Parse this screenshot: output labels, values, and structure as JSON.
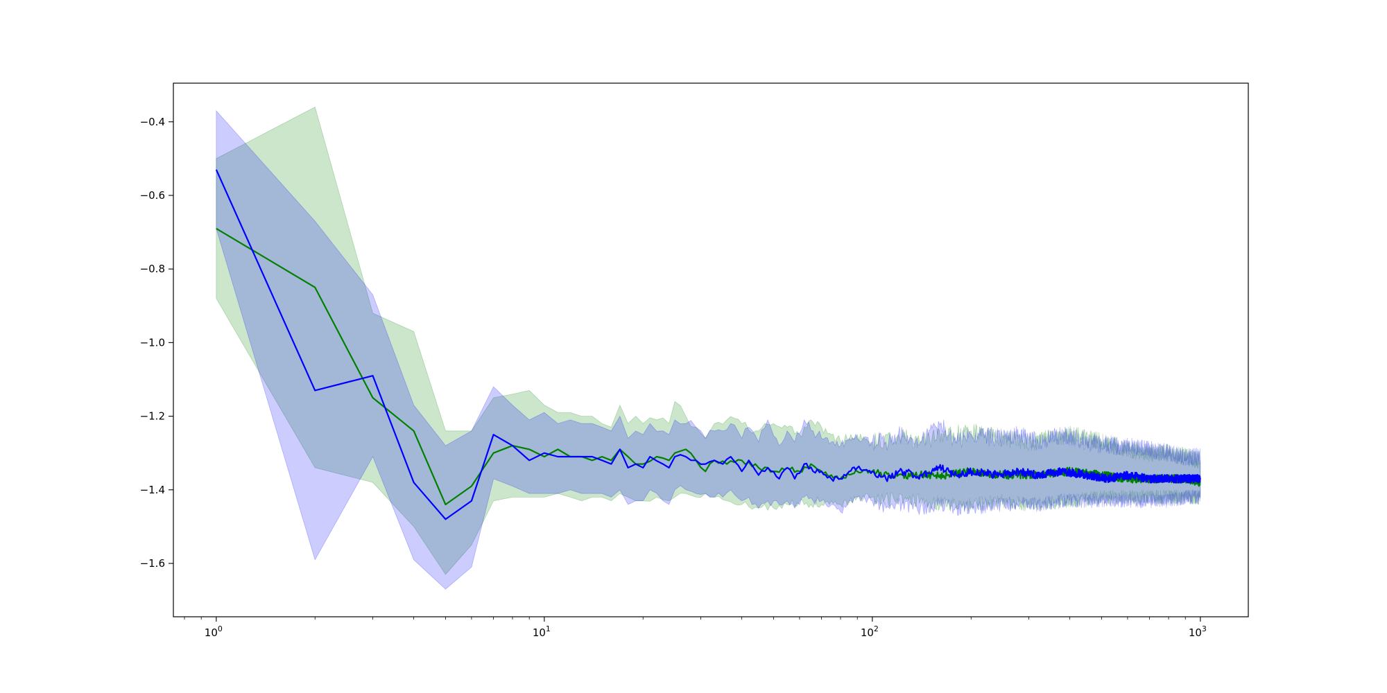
{
  "chart_data": {
    "type": "line",
    "xscale": "log",
    "yscale": "linear",
    "xlim": [
      0.74,
      1400
    ],
    "ylim": [
      -1.745,
      -0.295
    ],
    "grid": false,
    "legend": "none",
    "xticks": [
      {
        "value": 1,
        "base": "10",
        "exp": "0"
      },
      {
        "value": 10,
        "base": "10",
        "exp": "1"
      },
      {
        "value": 100,
        "base": "10",
        "exp": "2"
      },
      {
        "value": 1000,
        "base": "10",
        "exp": "3"
      }
    ],
    "yticks": [
      {
        "value": -0.4,
        "label": "−0.4"
      },
      {
        "value": -0.6,
        "label": "−0.6"
      },
      {
        "value": -0.8,
        "label": "−0.8"
      },
      {
        "value": -1.0,
        "label": "−1.0"
      },
      {
        "value": -1.2,
        "label": "−1.2"
      },
      {
        "value": -1.4,
        "label": "−1.4"
      },
      {
        "value": -1.6,
        "label": "−1.6"
      }
    ],
    "series": [
      {
        "color": "#008000",
        "band_color": "#008000",
        "band_opacity": 0.2,
        "points": [
          [
            1,
            -0.69
          ],
          [
            2,
            -0.85
          ],
          [
            3,
            -1.15
          ],
          [
            4,
            -1.24
          ],
          [
            5,
            -1.44
          ],
          [
            6,
            -1.39
          ],
          [
            7,
            -1.3
          ],
          [
            8,
            -1.28
          ],
          [
            9,
            -1.29
          ],
          [
            10,
            -1.31
          ],
          [
            11,
            -1.29
          ],
          [
            12,
            -1.31
          ],
          [
            13,
            -1.31
          ],
          [
            14,
            -1.32
          ],
          [
            15,
            -1.31
          ],
          [
            16,
            -1.32
          ],
          [
            17,
            -1.29
          ],
          [
            18,
            -1.31
          ],
          [
            19,
            -1.33
          ],
          [
            20,
            -1.33
          ],
          [
            22,
            -1.31
          ],
          [
            24,
            -1.32
          ],
          [
            25,
            -1.3
          ],
          [
            27,
            -1.29
          ],
          [
            29,
            -1.32
          ],
          [
            31,
            -1.35
          ],
          [
            33,
            -1.32
          ],
          [
            36,
            -1.33
          ],
          [
            40,
            -1.32
          ],
          [
            45,
            -1.34
          ],
          [
            50,
            -1.35
          ],
          [
            55,
            -1.34
          ],
          [
            60,
            -1.35
          ],
          [
            65,
            -1.33
          ],
          [
            70,
            -1.35
          ],
          [
            75,
            -1.36
          ],
          [
            80,
            -1.37
          ],
          [
            90,
            -1.35
          ],
          [
            100,
            -1.35
          ],
          [
            120,
            -1.36
          ],
          [
            140,
            -1.36
          ],
          [
            170,
            -1.36
          ],
          [
            200,
            -1.35
          ],
          [
            250,
            -1.36
          ],
          [
            300,
            -1.36
          ],
          [
            400,
            -1.35
          ],
          [
            500,
            -1.36
          ],
          [
            600,
            -1.37
          ],
          [
            700,
            -1.37
          ],
          [
            800,
            -1.37
          ],
          [
            900,
            -1.37
          ],
          [
            1000,
            -1.38
          ]
        ],
        "band": [
          [
            1,
            -0.5,
            -0.88
          ],
          [
            2,
            -0.36,
            -1.34
          ],
          [
            3,
            -0.92,
            -1.38
          ],
          [
            4,
            -0.97,
            -1.5
          ],
          [
            5,
            -1.24,
            -1.63
          ],
          [
            6,
            -1.24,
            -1.55
          ],
          [
            7,
            -1.15,
            -1.43
          ],
          [
            8,
            -1.14,
            -1.42
          ],
          [
            9,
            -1.13,
            -1.42
          ],
          [
            10,
            -1.17,
            -1.42
          ],
          [
            11,
            -1.19,
            -1.41
          ],
          [
            12,
            -1.19,
            -1.42
          ],
          [
            13,
            -1.2,
            -1.43
          ],
          [
            14,
            -1.2,
            -1.42
          ],
          [
            15,
            -1.22,
            -1.42
          ],
          [
            16,
            -1.23,
            -1.43
          ],
          [
            17,
            -1.17,
            -1.41
          ],
          [
            18,
            -1.22,
            -1.42
          ],
          [
            19,
            -1.2,
            -1.43
          ],
          [
            20,
            -1.22,
            -1.43
          ],
          [
            22,
            -1.21,
            -1.42
          ],
          [
            24,
            -1.22,
            -1.43
          ],
          [
            25,
            -1.16,
            -1.42
          ],
          [
            27,
            -1.2,
            -1.41
          ],
          [
            29,
            -1.23,
            -1.42
          ],
          [
            31,
            -1.26,
            -1.41
          ],
          [
            33,
            -1.22,
            -1.42
          ],
          [
            36,
            -1.21,
            -1.43
          ],
          [
            40,
            -1.22,
            -1.44
          ],
          [
            45,
            -1.24,
            -1.45
          ],
          [
            50,
            -1.22,
            -1.45
          ],
          [
            55,
            -1.23,
            -1.44
          ],
          [
            60,
            -1.25,
            -1.43
          ],
          [
            65,
            -1.21,
            -1.44
          ],
          [
            70,
            -1.23,
            -1.44
          ],
          [
            75,
            -1.25,
            -1.43
          ],
          [
            80,
            -1.27,
            -1.44
          ],
          [
            90,
            -1.25,
            -1.42
          ],
          [
            100,
            -1.27,
            -1.42
          ],
          [
            120,
            -1.25,
            -1.43
          ],
          [
            140,
            -1.27,
            -1.43
          ],
          [
            170,
            -1.25,
            -1.44
          ],
          [
            200,
            -1.24,
            -1.44
          ],
          [
            250,
            -1.26,
            -1.43
          ],
          [
            300,
            -1.27,
            -1.44
          ],
          [
            400,
            -1.25,
            -1.43
          ],
          [
            500,
            -1.27,
            -1.42
          ],
          [
            600,
            -1.29,
            -1.42
          ],
          [
            700,
            -1.3,
            -1.42
          ],
          [
            800,
            -1.3,
            -1.42
          ],
          [
            900,
            -1.31,
            -1.42
          ],
          [
            1000,
            -1.32,
            -1.42
          ]
        ]
      },
      {
        "color": "#0000ff",
        "band_color": "#0000ff",
        "band_opacity": 0.2,
        "points": [
          [
            1,
            -0.53
          ],
          [
            2,
            -1.13
          ],
          [
            3,
            -1.09
          ],
          [
            4,
            -1.38
          ],
          [
            5,
            -1.48
          ],
          [
            6,
            -1.43
          ],
          [
            7,
            -1.25
          ],
          [
            8,
            -1.28
          ],
          [
            9,
            -1.32
          ],
          [
            10,
            -1.3
          ],
          [
            11,
            -1.31
          ],
          [
            12,
            -1.31
          ],
          [
            13,
            -1.31
          ],
          [
            14,
            -1.31
          ],
          [
            15,
            -1.32
          ],
          [
            16,
            -1.33
          ],
          [
            17,
            -1.29
          ],
          [
            18,
            -1.34
          ],
          [
            19,
            -1.33
          ],
          [
            20,
            -1.34
          ],
          [
            21,
            -1.31
          ],
          [
            23,
            -1.33
          ],
          [
            24,
            -1.34
          ],
          [
            25,
            -1.31
          ],
          [
            27,
            -1.31
          ],
          [
            29,
            -1.32
          ],
          [
            31,
            -1.33
          ],
          [
            33,
            -1.32
          ],
          [
            35,
            -1.33
          ],
          [
            37,
            -1.31
          ],
          [
            40,
            -1.35
          ],
          [
            42,
            -1.32
          ],
          [
            45,
            -1.36
          ],
          [
            48,
            -1.34
          ],
          [
            52,
            -1.37
          ],
          [
            55,
            -1.34
          ],
          [
            58,
            -1.37
          ],
          [
            62,
            -1.33
          ],
          [
            66,
            -1.35
          ],
          [
            70,
            -1.35
          ],
          [
            75,
            -1.37
          ],
          [
            80,
            -1.37
          ],
          [
            85,
            -1.35
          ],
          [
            90,
            -1.34
          ],
          [
            100,
            -1.35
          ],
          [
            110,
            -1.37
          ],
          [
            120,
            -1.35
          ],
          [
            140,
            -1.36
          ],
          [
            160,
            -1.34
          ],
          [
            180,
            -1.36
          ],
          [
            200,
            -1.35
          ],
          [
            240,
            -1.36
          ],
          [
            280,
            -1.35
          ],
          [
            320,
            -1.36
          ],
          [
            380,
            -1.35
          ],
          [
            450,
            -1.36
          ],
          [
            520,
            -1.37
          ],
          [
            600,
            -1.36
          ],
          [
            700,
            -1.37
          ],
          [
            800,
            -1.37
          ],
          [
            900,
            -1.37
          ],
          [
            1000,
            -1.37
          ]
        ],
        "band": [
          [
            1,
            -0.37,
            -0.69
          ],
          [
            2,
            -0.67,
            -1.59
          ],
          [
            3,
            -0.87,
            -1.31
          ],
          [
            4,
            -1.17,
            -1.59
          ],
          [
            5,
            -1.28,
            -1.67
          ],
          [
            6,
            -1.24,
            -1.61
          ],
          [
            7,
            -1.12,
            -1.37
          ],
          [
            8,
            -1.17,
            -1.39
          ],
          [
            9,
            -1.21,
            -1.41
          ],
          [
            10,
            -1.19,
            -1.41
          ],
          [
            11,
            -1.22,
            -1.41
          ],
          [
            12,
            -1.21,
            -1.4
          ],
          [
            13,
            -1.22,
            -1.41
          ],
          [
            14,
            -1.22,
            -1.41
          ],
          [
            15,
            -1.23,
            -1.41
          ],
          [
            16,
            -1.24,
            -1.42
          ],
          [
            17,
            -1.2,
            -1.4
          ],
          [
            18,
            -1.26,
            -1.44
          ],
          [
            19,
            -1.24,
            -1.43
          ],
          [
            20,
            -1.25,
            -1.43
          ],
          [
            21,
            -1.22,
            -1.4
          ],
          [
            23,
            -1.24,
            -1.43
          ],
          [
            24,
            -1.25,
            -1.44
          ],
          [
            25,
            -1.21,
            -1.4
          ],
          [
            27,
            -1.22,
            -1.4
          ],
          [
            29,
            -1.23,
            -1.41
          ],
          [
            31,
            -1.26,
            -1.41
          ],
          [
            33,
            -1.24,
            -1.42
          ],
          [
            35,
            -1.24,
            -1.42
          ],
          [
            37,
            -1.22,
            -1.4
          ],
          [
            40,
            -1.26,
            -1.43
          ],
          [
            42,
            -1.23,
            -1.42
          ],
          [
            45,
            -1.27,
            -1.45
          ],
          [
            48,
            -1.21,
            -1.43
          ],
          [
            52,
            -1.28,
            -1.44
          ],
          [
            55,
            -1.24,
            -1.43
          ],
          [
            58,
            -1.27,
            -1.45
          ],
          [
            62,
            -1.21,
            -1.42
          ],
          [
            66,
            -1.24,
            -1.43
          ],
          [
            70,
            -1.26,
            -1.43
          ],
          [
            75,
            -1.27,
            -1.44
          ],
          [
            80,
            -1.28,
            -1.46
          ],
          [
            85,
            -1.26,
            -1.43
          ],
          [
            90,
            -1.26,
            -1.42
          ],
          [
            100,
            -1.27,
            -1.43
          ],
          [
            110,
            -1.27,
            -1.45
          ],
          [
            120,
            -1.25,
            -1.44
          ],
          [
            140,
            -1.27,
            -1.45
          ],
          [
            160,
            -1.22,
            -1.44
          ],
          [
            180,
            -1.27,
            -1.45
          ],
          [
            200,
            -1.25,
            -1.45
          ],
          [
            240,
            -1.26,
            -1.44
          ],
          [
            280,
            -1.25,
            -1.44
          ],
          [
            320,
            -1.27,
            -1.44
          ],
          [
            380,
            -1.25,
            -1.43
          ],
          [
            450,
            -1.27,
            -1.43
          ],
          [
            520,
            -1.28,
            -1.43
          ],
          [
            600,
            -1.28,
            -1.43
          ],
          [
            700,
            -1.29,
            -1.43
          ],
          [
            800,
            -1.3,
            -1.43
          ],
          [
            900,
            -1.31,
            -1.42
          ],
          [
            1000,
            -1.31,
            -1.42
          ]
        ]
      }
    ]
  }
}
